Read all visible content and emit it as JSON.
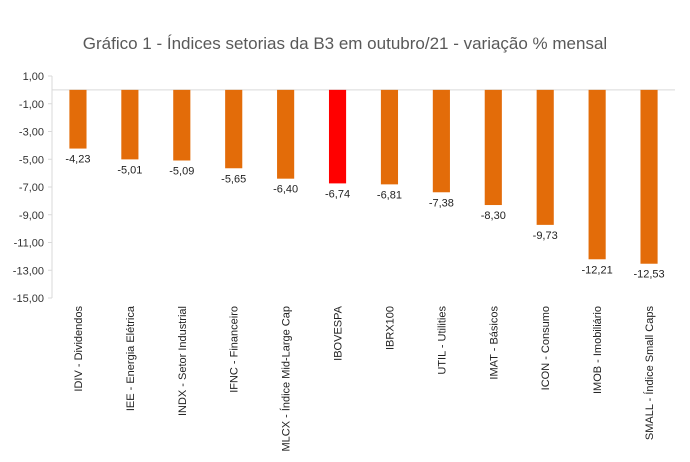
{
  "chart_data": {
    "type": "bar",
    "title": "Gráfico 1 - Índices setorias da B3 em outubro/21 - variação % mensal",
    "xlabel": "",
    "ylabel": "",
    "ylim": [
      -15,
      1
    ],
    "yticks": [
      1,
      -1,
      -3,
      -5,
      -7,
      -9,
      -11,
      -13,
      -15
    ],
    "ytick_labels": [
      "1,00",
      "-1,00",
      "-3,00",
      "-5,00",
      "-7,00",
      "-9,00",
      "-11,00",
      "-13,00",
      "-15,00"
    ],
    "grid": false,
    "legend": "none",
    "categories": [
      "IDIV - Dividendos",
      "IEE - Energia Elétrica",
      "INDX - Setor Industrial",
      "IFNC - Financeiro",
      "MLCX - Índice Mid-Large Cap",
      "IBOVESPA",
      "IBRX100",
      "UTIL - Utilities",
      "IMAT - Básicos",
      "ICON - Consumo",
      "IMOB - Imobiliário",
      "SMALL - Índice Small Caps"
    ],
    "values": [
      -4.23,
      -5.01,
      -5.09,
      -5.65,
      -6.4,
      -6.74,
      -6.81,
      -7.38,
      -8.3,
      -9.73,
      -12.21,
      -12.53
    ],
    "value_labels": [
      "-4,23",
      "-5,01",
      "-5,09",
      "-5,65",
      "-6,40",
      "-6,74",
      "-6,81",
      "-7,38",
      "-8,30",
      "-9,73",
      "-12,21",
      "-12,53"
    ],
    "colors": {
      "bar": "#E36C09",
      "highlight": "#FF0000",
      "highlight_category": "IBOVESPA",
      "axis": "#D9D9D9"
    }
  }
}
